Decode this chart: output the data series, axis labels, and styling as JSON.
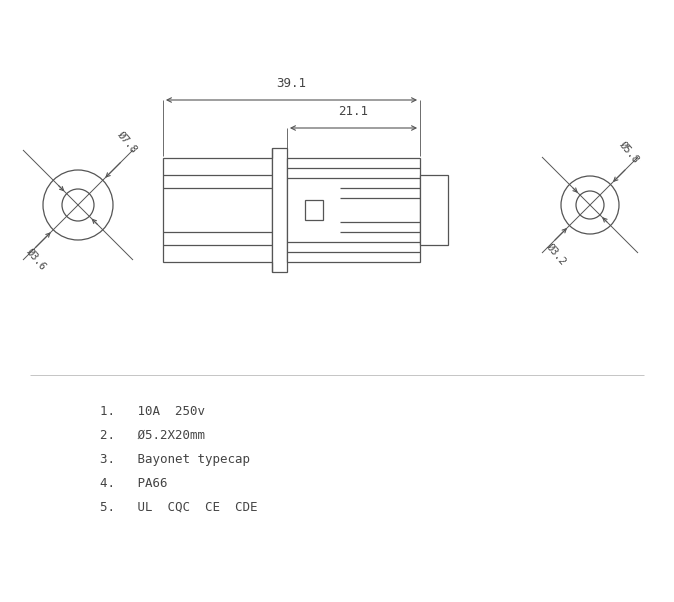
{
  "bg_color": "#ffffff",
  "line_color": "#555555",
  "dim_color": "#555555",
  "text_color": "#444444",
  "fig_width": 6.74,
  "fig_height": 6.02,
  "specs": [
    "1.   10A  250v",
    "2.   Ø5.2X20mm",
    "3.   Bayonet typecap",
    "4.   PA66",
    "5.   UL  CQC  CE  CDE"
  ],
  "dim_391": "39.1",
  "dim_211": "21.1",
  "dim_78": "Ø7.8",
  "dim_36": "Ø3.6",
  "dim_58": "Ø5.8",
  "dim_32": "Ø3.2"
}
